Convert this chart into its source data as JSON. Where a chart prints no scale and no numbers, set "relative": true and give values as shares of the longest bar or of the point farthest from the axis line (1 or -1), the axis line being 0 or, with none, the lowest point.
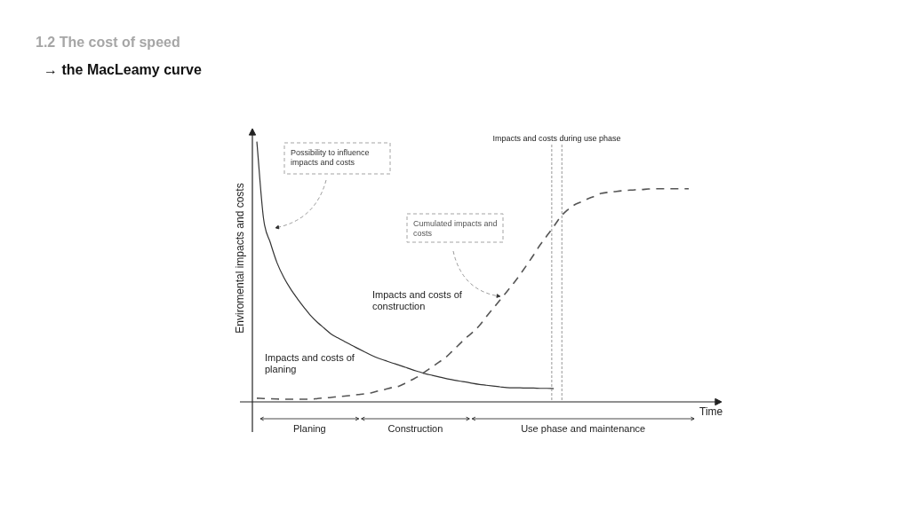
{
  "chart_data": {
    "type": "line",
    "title": "1.2 The cost of speed",
    "subtitle": "→ the MacLeamy curve",
    "xlabel": "Time",
    "ylabel": "Enviromental impacts and costs",
    "relative": true,
    "annotations": [
      "Impacts and costs of planing",
      "Impacts and costs of construction",
      "Impacts and costs during use phase",
      "Planing",
      "Construction",
      "Use phase and maintenance"
    ],
    "categories": [
      null,
      null,
      null,
      null,
      null,
      null,
      null,
      null,
      null,
      null,
      null,
      null,
      null,
      null,
      null,
      null,
      null,
      null,
      null,
      null,
      null,
      null,
      null,
      null,
      null,
      null,
      null,
      null,
      null,
      null,
      null,
      null,
      null,
      null,
      null,
      null,
      null,
      null,
      null,
      null,
      null,
      null,
      null,
      null,
      null,
      null,
      null,
      null,
      null,
      null,
      null,
      null,
      null,
      null,
      null,
      null,
      null,
      null,
      null,
      null,
      null,
      null,
      null,
      null,
      null
    ],
    "series": [
      {
        "name": "Possibility to influence impacts and costs",
        "color": "#333333",
        "line_style": "solid",
        "values": [
          1,
          0.703,
          0.612,
          0.534,
          0.478,
          0.434,
          0.397,
          0.363,
          0.331,
          0.305,
          0.283,
          0.261,
          0.246,
          0.232,
          0.218,
          0.205,
          0.192,
          0.179,
          0.168,
          0.159,
          0.15,
          0.142,
          0.133,
          0.124,
          0.116,
          0.108,
          0.102,
          0.096,
          0.09,
          0.085,
          0.08,
          0.076,
          0.071,
          0.067,
          0.064,
          0.061,
          0.058,
          0.055,
          0.054,
          0.054,
          0.053,
          0.053,
          0.052,
          0.052,
          0.051,
          null,
          null,
          null,
          null,
          null,
          null,
          null,
          null,
          null,
          null,
          null,
          null,
          null,
          null,
          null,
          null,
          null,
          null,
          null,
          null
        ]
      },
      {
        "name": "Cumulated impacts and costs",
        "color": "#555555",
        "line_style": "dashed",
        "values": [
          0.014,
          0.013,
          0.012,
          0.011,
          0.01,
          0.01,
          0.01,
          0.01,
          0.01,
          0.013,
          0.015,
          0.017,
          0.02,
          0.022,
          0.025,
          0.028,
          0.031,
          0.035,
          0.042,
          0.048,
          0.055,
          0.06,
          0.072,
          0.085,
          0.099,
          0.117,
          0.135,
          0.153,
          0.171,
          0.196,
          0.221,
          0.246,
          0.268,
          0.294,
          0.327,
          0.359,
          0.39,
          0.422,
          0.454,
          0.489,
          0.526,
          0.564,
          0.604,
          0.639,
          0.674,
          0.711,
          0.737,
          0.756,
          0.768,
          0.78,
          0.79,
          0.801,
          0.805,
          0.808,
          0.811,
          0.813,
          0.815,
          0.816,
          0.818,
          0.819,
          0.819,
          0.819,
          0.819,
          0.819,
          0.819
        ]
      }
    ]
  }
}
